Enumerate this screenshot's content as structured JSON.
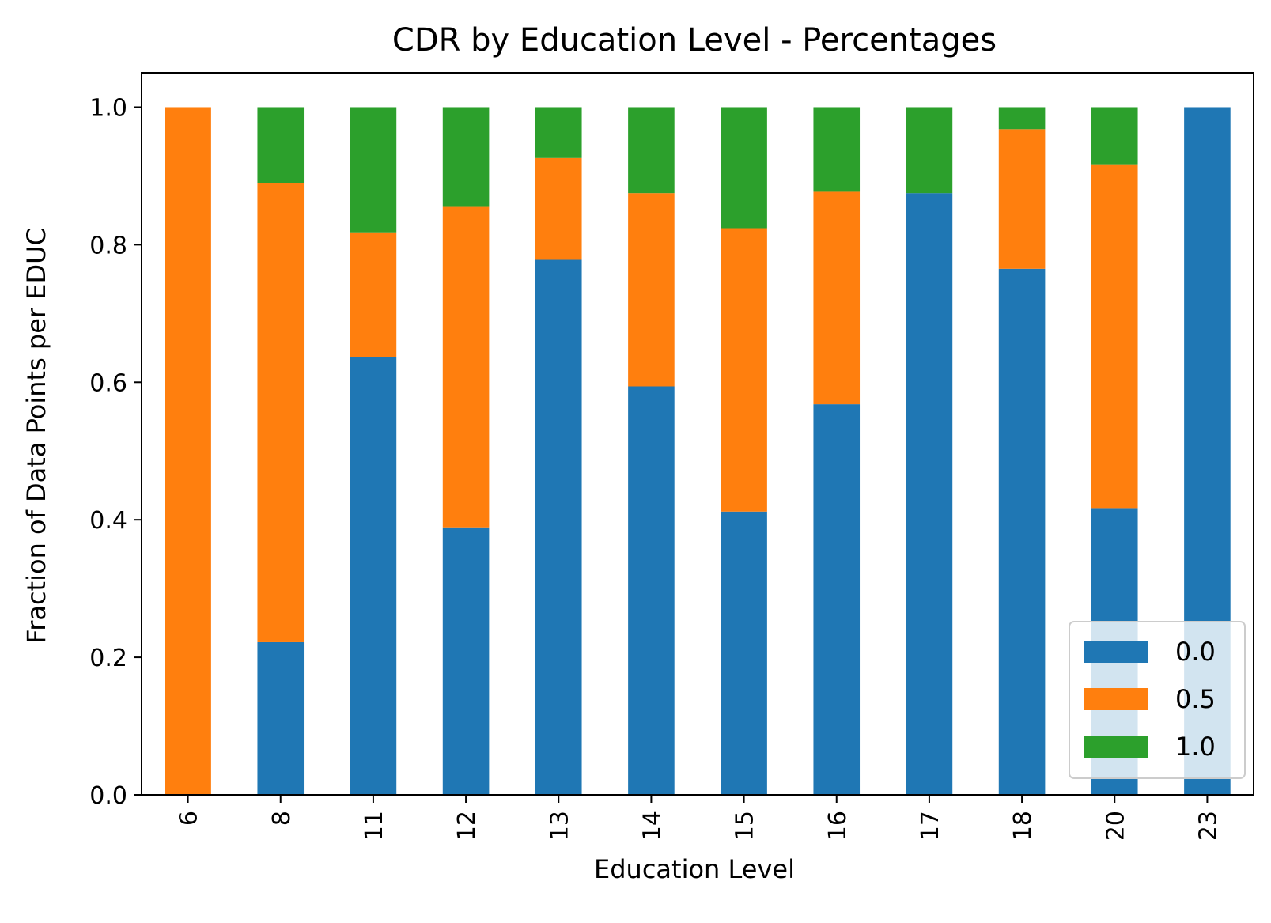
{
  "chart_data": {
    "type": "bar",
    "stacked": true,
    "title": "CDR by Education Level - Percentages",
    "xlabel": "Education Level",
    "ylabel": "Fraction of Data Points per EDUC",
    "ylim": [
      0,
      1.05
    ],
    "yticks": [
      0.0,
      0.2,
      0.4,
      0.6,
      0.8,
      1.0
    ],
    "ytick_labels": [
      "0.0",
      "0.2",
      "0.4",
      "0.6",
      "0.8",
      "1.0"
    ],
    "categories": [
      "6",
      "8",
      "11",
      "12",
      "13",
      "14",
      "15",
      "16",
      "17",
      "18",
      "20",
      "23"
    ],
    "series": [
      {
        "name": "0.0",
        "color": "#1f77b4",
        "values": [
          0.0,
          0.222,
          0.636,
          0.389,
          0.778,
          0.594,
          0.412,
          0.568,
          0.875,
          0.765,
          0.417,
          1.0
        ]
      },
      {
        "name": "0.5",
        "color": "#ff7f0e",
        "values": [
          1.0,
          0.667,
          0.182,
          0.466,
          0.148,
          0.281,
          0.412,
          0.309,
          0.0,
          0.203,
          0.5,
          0.0
        ]
      },
      {
        "name": "1.0",
        "color": "#2ca02c",
        "values": [
          0.0,
          0.111,
          0.182,
          0.145,
          0.074,
          0.125,
          0.176,
          0.123,
          0.125,
          0.032,
          0.083,
          0.0
        ]
      }
    ],
    "grid": false,
    "legend_position": "lower-right"
  }
}
